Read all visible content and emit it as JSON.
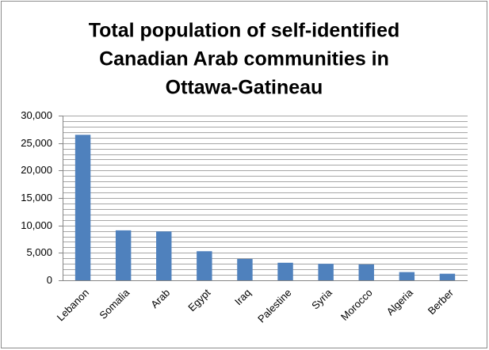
{
  "chart_data": {
    "type": "bar",
    "title": [
      "Total population of self-identified",
      "Canadian Arab communities in",
      "Ottawa-Gatineau"
    ],
    "categories": [
      "Lebanon",
      "Somalia",
      "Arab",
      "Egypt",
      "Iraq",
      "Palestine",
      "Syria",
      "Morocco",
      "Algeria",
      "Berber"
    ],
    "values": [
      26500,
      9100,
      8900,
      5300,
      3900,
      3200,
      3000,
      2900,
      1500,
      1200
    ],
    "color": "#4f81bd",
    "ylim": [
      0,
      30000
    ],
    "yticks": [
      0,
      {
        "value": 5000,
        "label": "5,000"
      },
      {
        "value": 10000,
        "label": "10,000"
      },
      {
        "value": 15000,
        "label": "15,000"
      },
      {
        "value": 20000,
        "label": "20,000"
      },
      {
        "value": 25000,
        "label": "25,000"
      },
      {
        "value": 30000,
        "label": "30,000"
      }
    ],
    "yminorticks": [
      1000,
      2000,
      3000,
      4000,
      6000,
      7000,
      8000,
      9000,
      11000,
      12000,
      13000,
      14000,
      16000,
      17000,
      18000,
      19000,
      21000,
      22000,
      23000,
      24000,
      26000,
      27000,
      28000,
      29000
    ],
    "grid": true
  }
}
